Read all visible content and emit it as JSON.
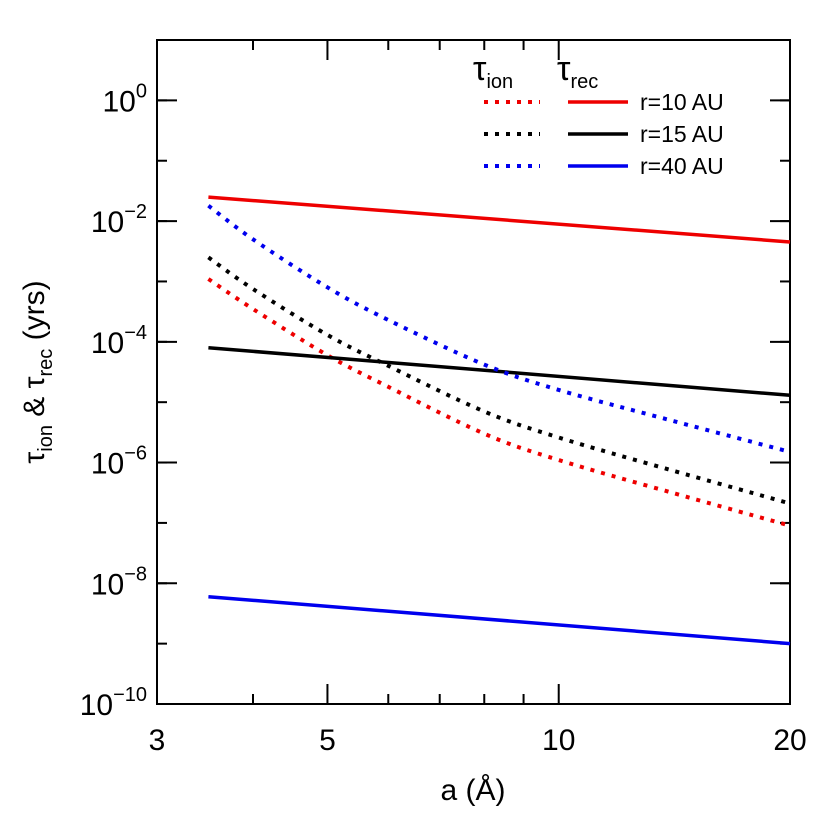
{
  "chart_data": {
    "type": "line",
    "xlabel": {
      "base": "a (Å)"
    },
    "ylabel": {
      "t1": "τ",
      "s1": "ion",
      "amp": " & ",
      "t2": "τ",
      "s2": "rec",
      "unit": " (yrs)"
    },
    "xscale": "log",
    "yscale": "log",
    "xlim": [
      3,
      20
    ],
    "ylim": [
      1e-10,
      10
    ],
    "x_ticks": [
      3,
      5,
      10,
      20
    ],
    "x_tick_labels": [
      "3",
      "5",
      "10",
      "20"
    ],
    "y_ticks": [
      {
        "value": 1,
        "base": "10",
        "exp": "0"
      },
      {
        "value": 0.01,
        "base": "10",
        "exp": "−2"
      },
      {
        "value": 0.0001,
        "base": "10",
        "exp": "−4"
      },
      {
        "value": 1e-06,
        "base": "10",
        "exp": "−6"
      },
      {
        "value": 1e-08,
        "base": "10",
        "exp": "−8"
      },
      {
        "value": 1e-10,
        "base": "10",
        "exp": "−10"
      }
    ],
    "grid": false,
    "legend": {
      "placement": "top-right",
      "col1": {
        "sym": "τ",
        "sub": "ion"
      },
      "col2": {
        "sym": "τ",
        "sub": "rec"
      },
      "rows": [
        {
          "label": "r=10 AU",
          "color": "#ee0000"
        },
        {
          "label": "r=15 AU",
          "color": "#000000"
        },
        {
          "label": "r=40 AU",
          "color": "#0000ee"
        }
      ]
    },
    "series": [
      {
        "kind": "ion",
        "style": "dotted",
        "color": "#ee0000",
        "points": [
          [
            3.5,
            0.0011
          ],
          [
            4,
            0.00035
          ],
          [
            5,
            6e-05
          ],
          [
            6,
            1.8e-05
          ],
          [
            8,
            3e-06
          ],
          [
            10,
            1.1e-06
          ],
          [
            14,
            3.2e-07
          ],
          [
            20,
            9e-08
          ]
        ]
      },
      {
        "kind": "rec",
        "style": "solid",
        "color": "#ee0000",
        "points": [
          [
            3.5,
            0.025
          ],
          [
            20,
            0.0045
          ]
        ]
      },
      {
        "kind": "ion",
        "style": "dotted",
        "color": "#000000",
        "points": [
          [
            3.5,
            0.0025
          ],
          [
            4,
            0.00075
          ],
          [
            5,
            0.00013
          ],
          [
            6,
            4e-05
          ],
          [
            8,
            7e-06
          ],
          [
            10,
            2.6e-06
          ],
          [
            14,
            7.5e-07
          ],
          [
            20,
            2.1e-07
          ]
        ]
      },
      {
        "kind": "rec",
        "style": "solid",
        "color": "#000000",
        "points": [
          [
            3.5,
            8e-05
          ],
          [
            20,
            1.3e-05
          ]
        ]
      },
      {
        "kind": "ion",
        "style": "dotted",
        "color": "#0000ee",
        "points": [
          [
            3.5,
            0.018
          ],
          [
            4,
            0.005
          ],
          [
            5,
            0.0008
          ],
          [
            6,
            0.00023
          ],
          [
            8,
            4.2e-05
          ],
          [
            10,
            1.6e-05
          ],
          [
            14,
            5e-06
          ],
          [
            20,
            1.5e-06
          ]
        ]
      },
      {
        "kind": "rec",
        "style": "solid",
        "color": "#0000ee",
        "points": [
          [
            3.5,
            6e-09
          ],
          [
            20,
            1e-09
          ]
        ]
      }
    ]
  }
}
